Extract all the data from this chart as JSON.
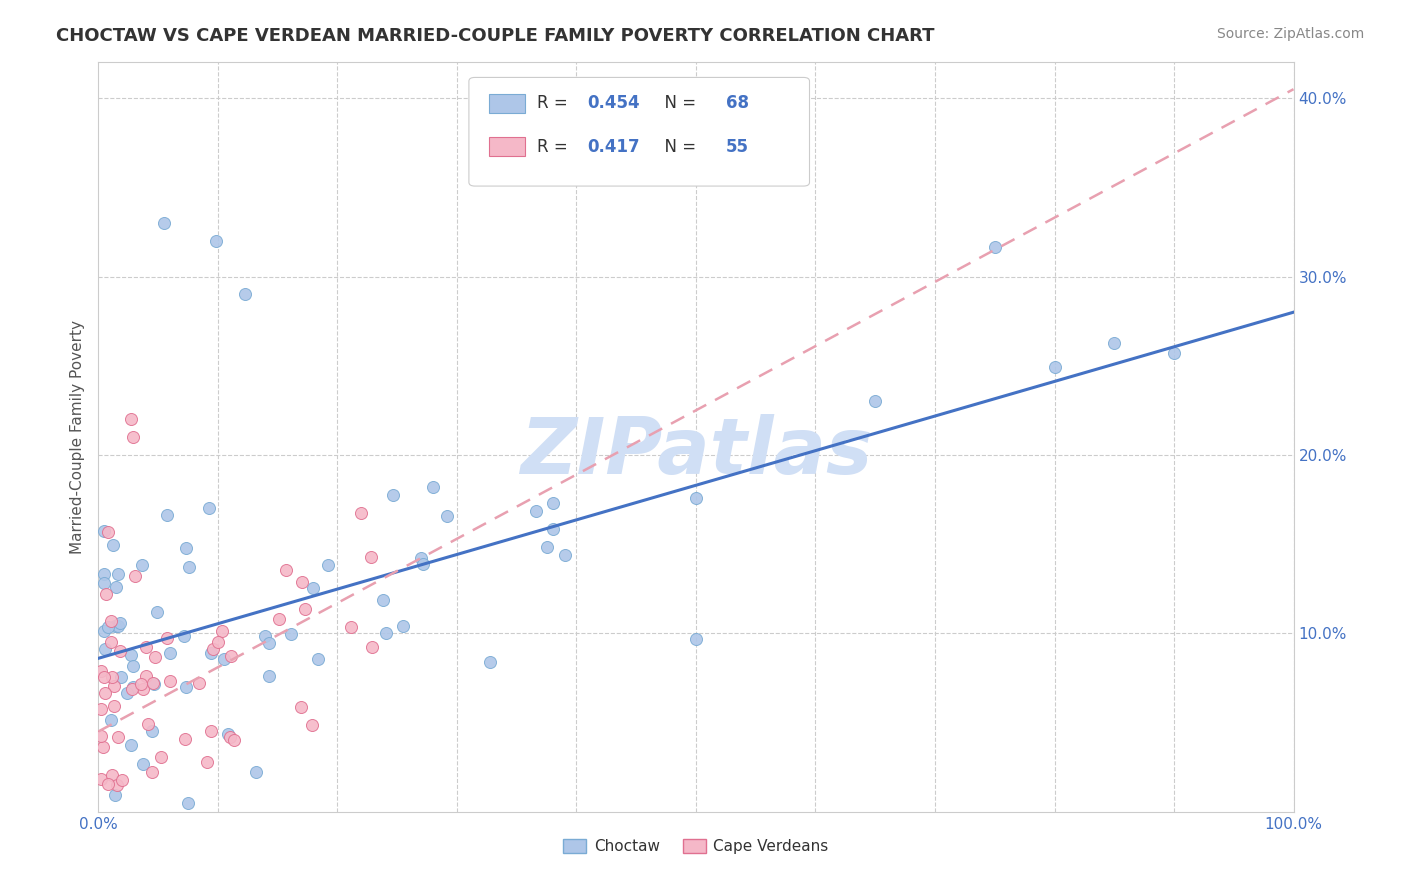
{
  "title": "CHOCTAW VS CAPE VERDEAN MARRIED-COUPLE FAMILY POVERTY CORRELATION CHART",
  "source": "Source: ZipAtlas.com",
  "ylabel": "Married-Couple Family Poverty",
  "xlim": [
    0,
    1.0
  ],
  "ylim": [
    0,
    0.42
  ],
  "xtick_labels": [
    "0.0%",
    "",
    "",
    "",
    "",
    "",
    "",
    "",
    "",
    "",
    "100.0%"
  ],
  "xtick_vals": [
    0,
    0.1,
    0.2,
    0.3,
    0.4,
    0.5,
    0.6,
    0.7,
    0.8,
    0.9,
    1.0
  ],
  "ytick_labels": [
    "10.0%",
    "20.0%",
    "30.0%",
    "40.0%"
  ],
  "ytick_vals": [
    0.1,
    0.2,
    0.3,
    0.4
  ],
  "choctaw_color": "#aec6e8",
  "choctaw_edge": "#7aabd4",
  "cape_color": "#f5b8c8",
  "cape_edge": "#e07090",
  "line_choctaw_color": "#4472c4",
  "line_cape_color": "#e8a0b0",
  "R_choctaw": 0.454,
  "N_choctaw": 68,
  "R_cape": 0.417,
  "N_cape": 55,
  "legend_label_choctaw": "Choctaw",
  "legend_label_cape": "Cape Verdeans",
  "watermark_color": "#d0dff5",
  "legend_text_color": "#4472c4",
  "tick_color": "#4472c4",
  "title_color": "#333333",
  "source_color": "#888888",
  "ylabel_color": "#555555",
  "grid_color": "#cccccc",
  "spine_color": "#cccccc",
  "line_choctaw_intercept": 0.086,
  "line_choctaw_slope": 0.194,
  "line_cape_intercept": 0.045,
  "line_cape_slope": 0.36
}
